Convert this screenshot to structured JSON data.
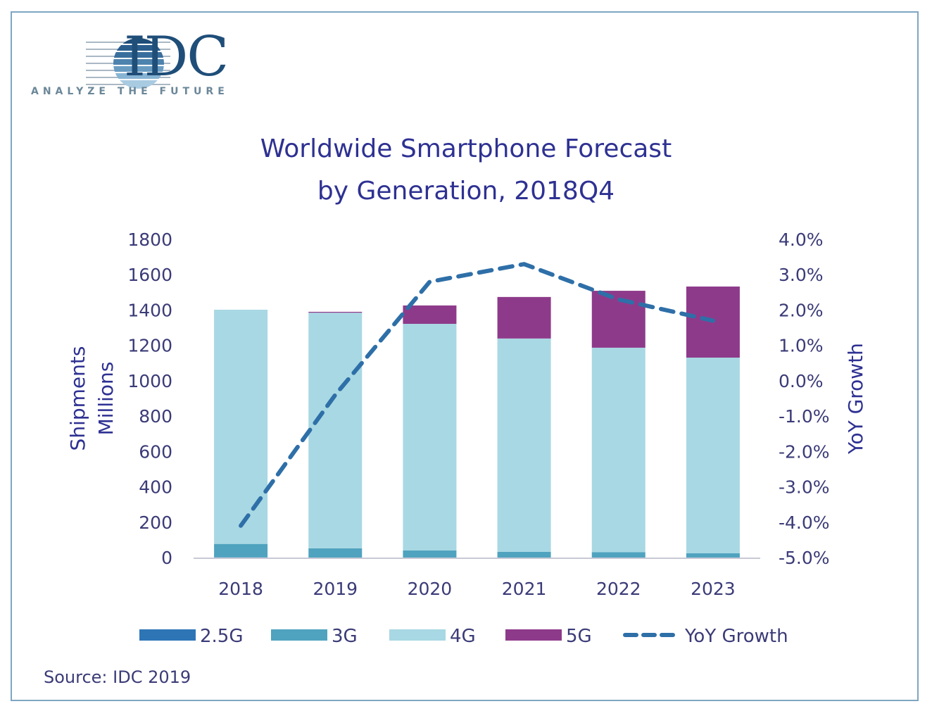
{
  "brand": {
    "name": "IDC",
    "tagline": "ANALYZE THE FUTURE",
    "color": "#1f4e79"
  },
  "source": "Source: IDC 2019",
  "chart_data": {
    "type": "bar",
    "stacked": true,
    "title": "Worldwide Smartphone Forecast",
    "subtitle": "by Generation, 2018Q4",
    "categories": [
      "2018",
      "2019",
      "2020",
      "2021",
      "2022",
      "2023"
    ],
    "ylabel": "Shipments Millions",
    "ylabel_lines": [
      "Shipments",
      "Millions"
    ],
    "ylim": [
      0,
      1800
    ],
    "yticks": [
      "0",
      "200",
      "400",
      "600",
      "800",
      "1000",
      "1200",
      "1400",
      "1600",
      "1800"
    ],
    "y2label": "YoY Growth",
    "y2lim": [
      -5.0,
      4.0
    ],
    "y2ticks": [
      "-5.0%",
      "-4.0%",
      "-3.0%",
      "-2.0%",
      "-1.0%",
      "0.0%",
      "1.0%",
      "2.0%",
      "3.0%",
      "4.0%"
    ],
    "grid": false,
    "legend_position": "bottom",
    "series": [
      {
        "name": "2.5G",
        "type": "bar",
        "color": "#2e75b6",
        "values": [
          1,
          0,
          0,
          0,
          0,
          0
        ]
      },
      {
        "name": "3G",
        "type": "bar",
        "color": "#4fa3bf",
        "values": [
          76,
          52,
          40,
          32,
          30,
          24
        ]
      },
      {
        "name": "4G",
        "type": "bar",
        "color": "#a8d8e3",
        "values": [
          1325,
          1333,
          1282,
          1207,
          1157,
          1107
        ]
      },
      {
        "name": "5G",
        "type": "bar",
        "color": "#8e3a8a",
        "values": [
          0,
          5,
          104,
          235,
          322,
          402
        ]
      },
      {
        "name": "YoY Growth",
        "type": "line",
        "style": "dashed",
        "axis": "right",
        "color": "#2e6fa8",
        "values": [
          -4.1,
          -0.4,
          2.8,
          3.3,
          2.3,
          1.7
        ]
      }
    ]
  }
}
